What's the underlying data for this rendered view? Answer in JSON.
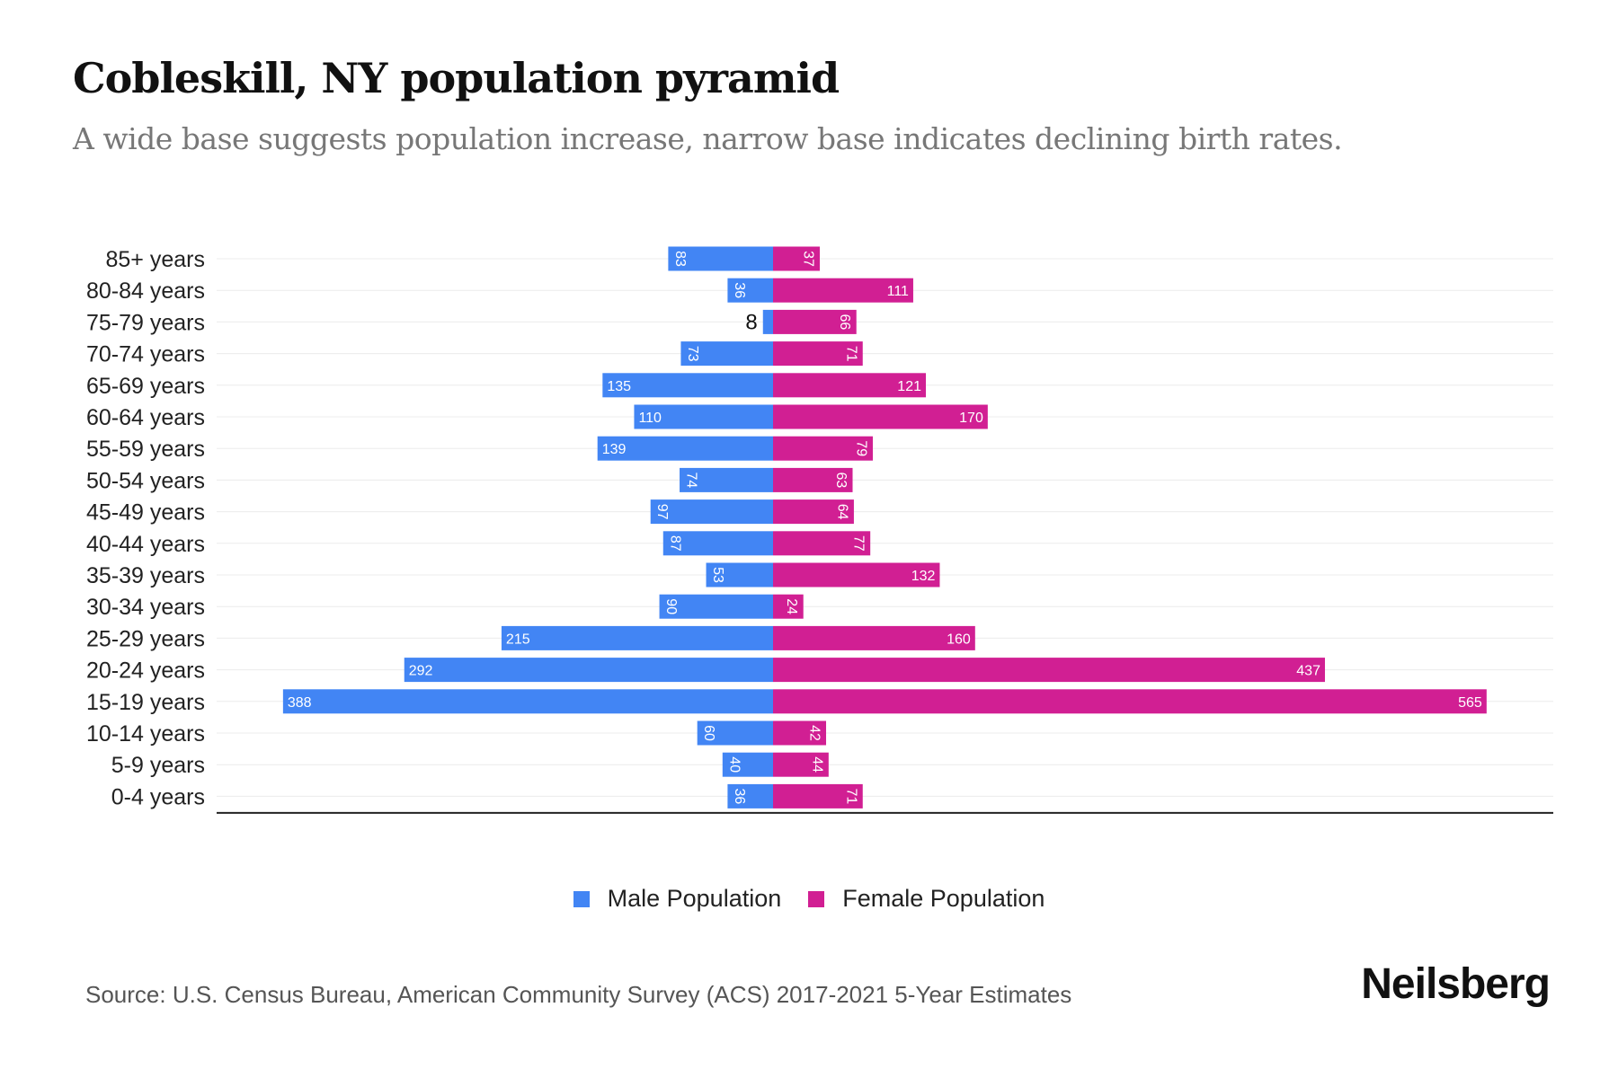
{
  "title": "Cobleskill, NY population pyramid",
  "subtitle": "A wide base suggests population increase, narrow base indicates declining birth rates.",
  "source": "Source: U.S. Census Bureau, American Community Survey (ACS) 2017-2021 5-Year Estimates",
  "brand": "Neilsberg",
  "colors": {
    "male": "#4285f4",
    "female": "#d11f93"
  },
  "chart_data": {
    "type": "bar",
    "orientation": "horizontal-pyramid",
    "title": "Cobleskill, NY population pyramid",
    "categories": [
      "85+ years",
      "80-84 years",
      "75-79 years",
      "70-74 years",
      "65-69 years",
      "60-64 years",
      "55-59 years",
      "50-54 years",
      "45-49 years",
      "40-44 years",
      "35-39 years",
      "30-34 years",
      "25-29 years",
      "20-24 years",
      "15-19 years",
      "10-14 years",
      "5-9 years",
      "0-4 years"
    ],
    "series": [
      {
        "name": "Male Population",
        "values": [
          83,
          36,
          8,
          73,
          135,
          110,
          139,
          74,
          97,
          87,
          53,
          90,
          215,
          292,
          388,
          60,
          40,
          36
        ]
      },
      {
        "name": "Female Population",
        "values": [
          37,
          111,
          66,
          71,
          121,
          170,
          79,
          63,
          64,
          77,
          132,
          24,
          160,
          437,
          565,
          42,
          44,
          71
        ]
      }
    ],
    "xlim": [
      -388,
      565
    ],
    "legend": "bottom-center",
    "grid": true
  }
}
